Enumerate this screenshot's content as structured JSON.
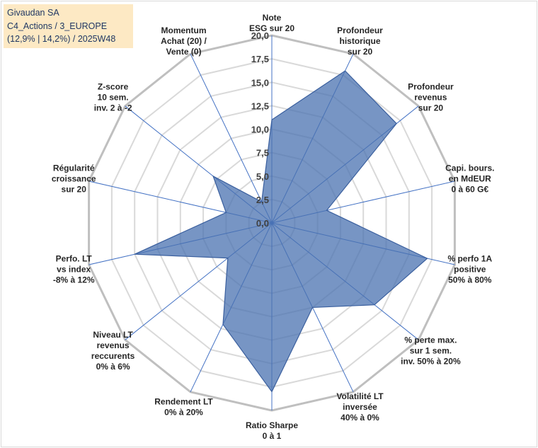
{
  "title_box": {
    "line1": "Givaudan SA",
    "line2": "C4_Actions / 3_EUROPE",
    "line3": "(12,9% | 14,2%) / 2025W48"
  },
  "chart_data": {
    "type": "radar",
    "title": "Givaudan SA",
    "rmin": 0,
    "rmax": 20,
    "ticks": [
      "0,0",
      "2,5",
      "5,0",
      "7,5",
      "10,0",
      "12,5",
      "15,0",
      "17,5",
      "20,0"
    ],
    "tick_values": [
      0,
      2.5,
      5,
      7.5,
      10,
      12.5,
      15,
      17.5,
      20
    ],
    "categories": [
      {
        "lines": [
          "Note",
          "ESG sur 20"
        ]
      },
      {
        "lines": [
          "Profondeur",
          "historique",
          "sur 20"
        ]
      },
      {
        "lines": [
          "Profondeur",
          "revenus",
          "sur 20"
        ]
      },
      {
        "lines": [
          "Capi. bours.",
          "en MdEUR",
          "0 à 60 G€"
        ]
      },
      {
        "lines": [
          "% perfo 1A",
          "positive",
          "50% à 80%"
        ]
      },
      {
        "lines": [
          "% perte max.",
          "sur 1 sem.",
          "inv. 50% à 20%"
        ]
      },
      {
        "lines": [
          "Volatilité LT",
          "inversée",
          "40% à 0%"
        ]
      },
      {
        "lines": [
          "Ratio Sharpe",
          "0 à 1"
        ]
      },
      {
        "lines": [
          "Rendement LT",
          "0% à 20%"
        ]
      },
      {
        "lines": [
          "Niveau LT",
          "revenus",
          "reccurents",
          "0% à 6%"
        ]
      },
      {
        "lines": [
          "Perfo. LT",
          "vs index",
          "-8% à 12%"
        ]
      },
      {
        "lines": [
          "Régularité",
          "croissance",
          "sur 20"
        ]
      },
      {
        "lines": [
          "Z-score",
          "10 sem.",
          "inv. 2 à -2"
        ]
      },
      {
        "lines": [
          "Momentum",
          "Achat (20) /",
          "Vente (0)"
        ]
      }
    ],
    "series": [
      {
        "name": "Givaudan SA",
        "values": [
          11,
          18,
          17,
          6,
          17,
          14,
          10,
          18,
          12,
          6,
          15,
          5,
          8,
          2.5
        ],
        "color": "#4a71b0",
        "fill_opacity": 0.75
      }
    ],
    "grid_color": "#d9d9d9",
    "spoke_color": "#4472c4"
  }
}
